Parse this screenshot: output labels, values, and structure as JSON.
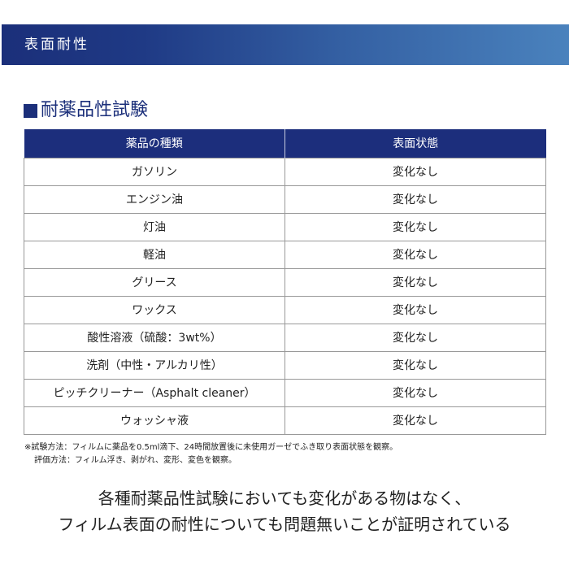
{
  "banner": {
    "title": "表面耐性"
  },
  "section": {
    "title": "耐薬品性試験"
  },
  "table": {
    "headers": [
      "薬品の種類",
      "表面状態"
    ],
    "rows": [
      [
        "ガソリン",
        "変化なし"
      ],
      [
        "エンジン油",
        "変化なし"
      ],
      [
        "灯油",
        "変化なし"
      ],
      [
        "軽油",
        "変化なし"
      ],
      [
        "グリース",
        "変化なし"
      ],
      [
        "ワックス",
        "変化なし"
      ],
      [
        "酸性溶液（硫酸：3wt%）",
        "変化なし"
      ],
      [
        "洗剤（中性・アルカリ性）",
        "変化なし"
      ],
      [
        "ピッチクリーナー（Asphalt cleaner）",
        "変化なし"
      ],
      [
        "ウォッシャ液",
        "変化なし"
      ]
    ]
  },
  "notes": [
    "※試験方法：フィルムに薬品を0.5ml滴下、24時間放置後に未使用ガーゼでふき取り表面状態を観察。",
    "評価方法：フィルム浮き、剥がれ、変形、変色を観察。"
  ],
  "summary": [
    "各種耐薬品性試験においても変化がある物はなく、",
    "フィルム表面の耐性についても問題無いことが証明されている"
  ],
  "colors": {
    "navy": "#1c2e7c",
    "banner_end": "#4a82bd"
  }
}
